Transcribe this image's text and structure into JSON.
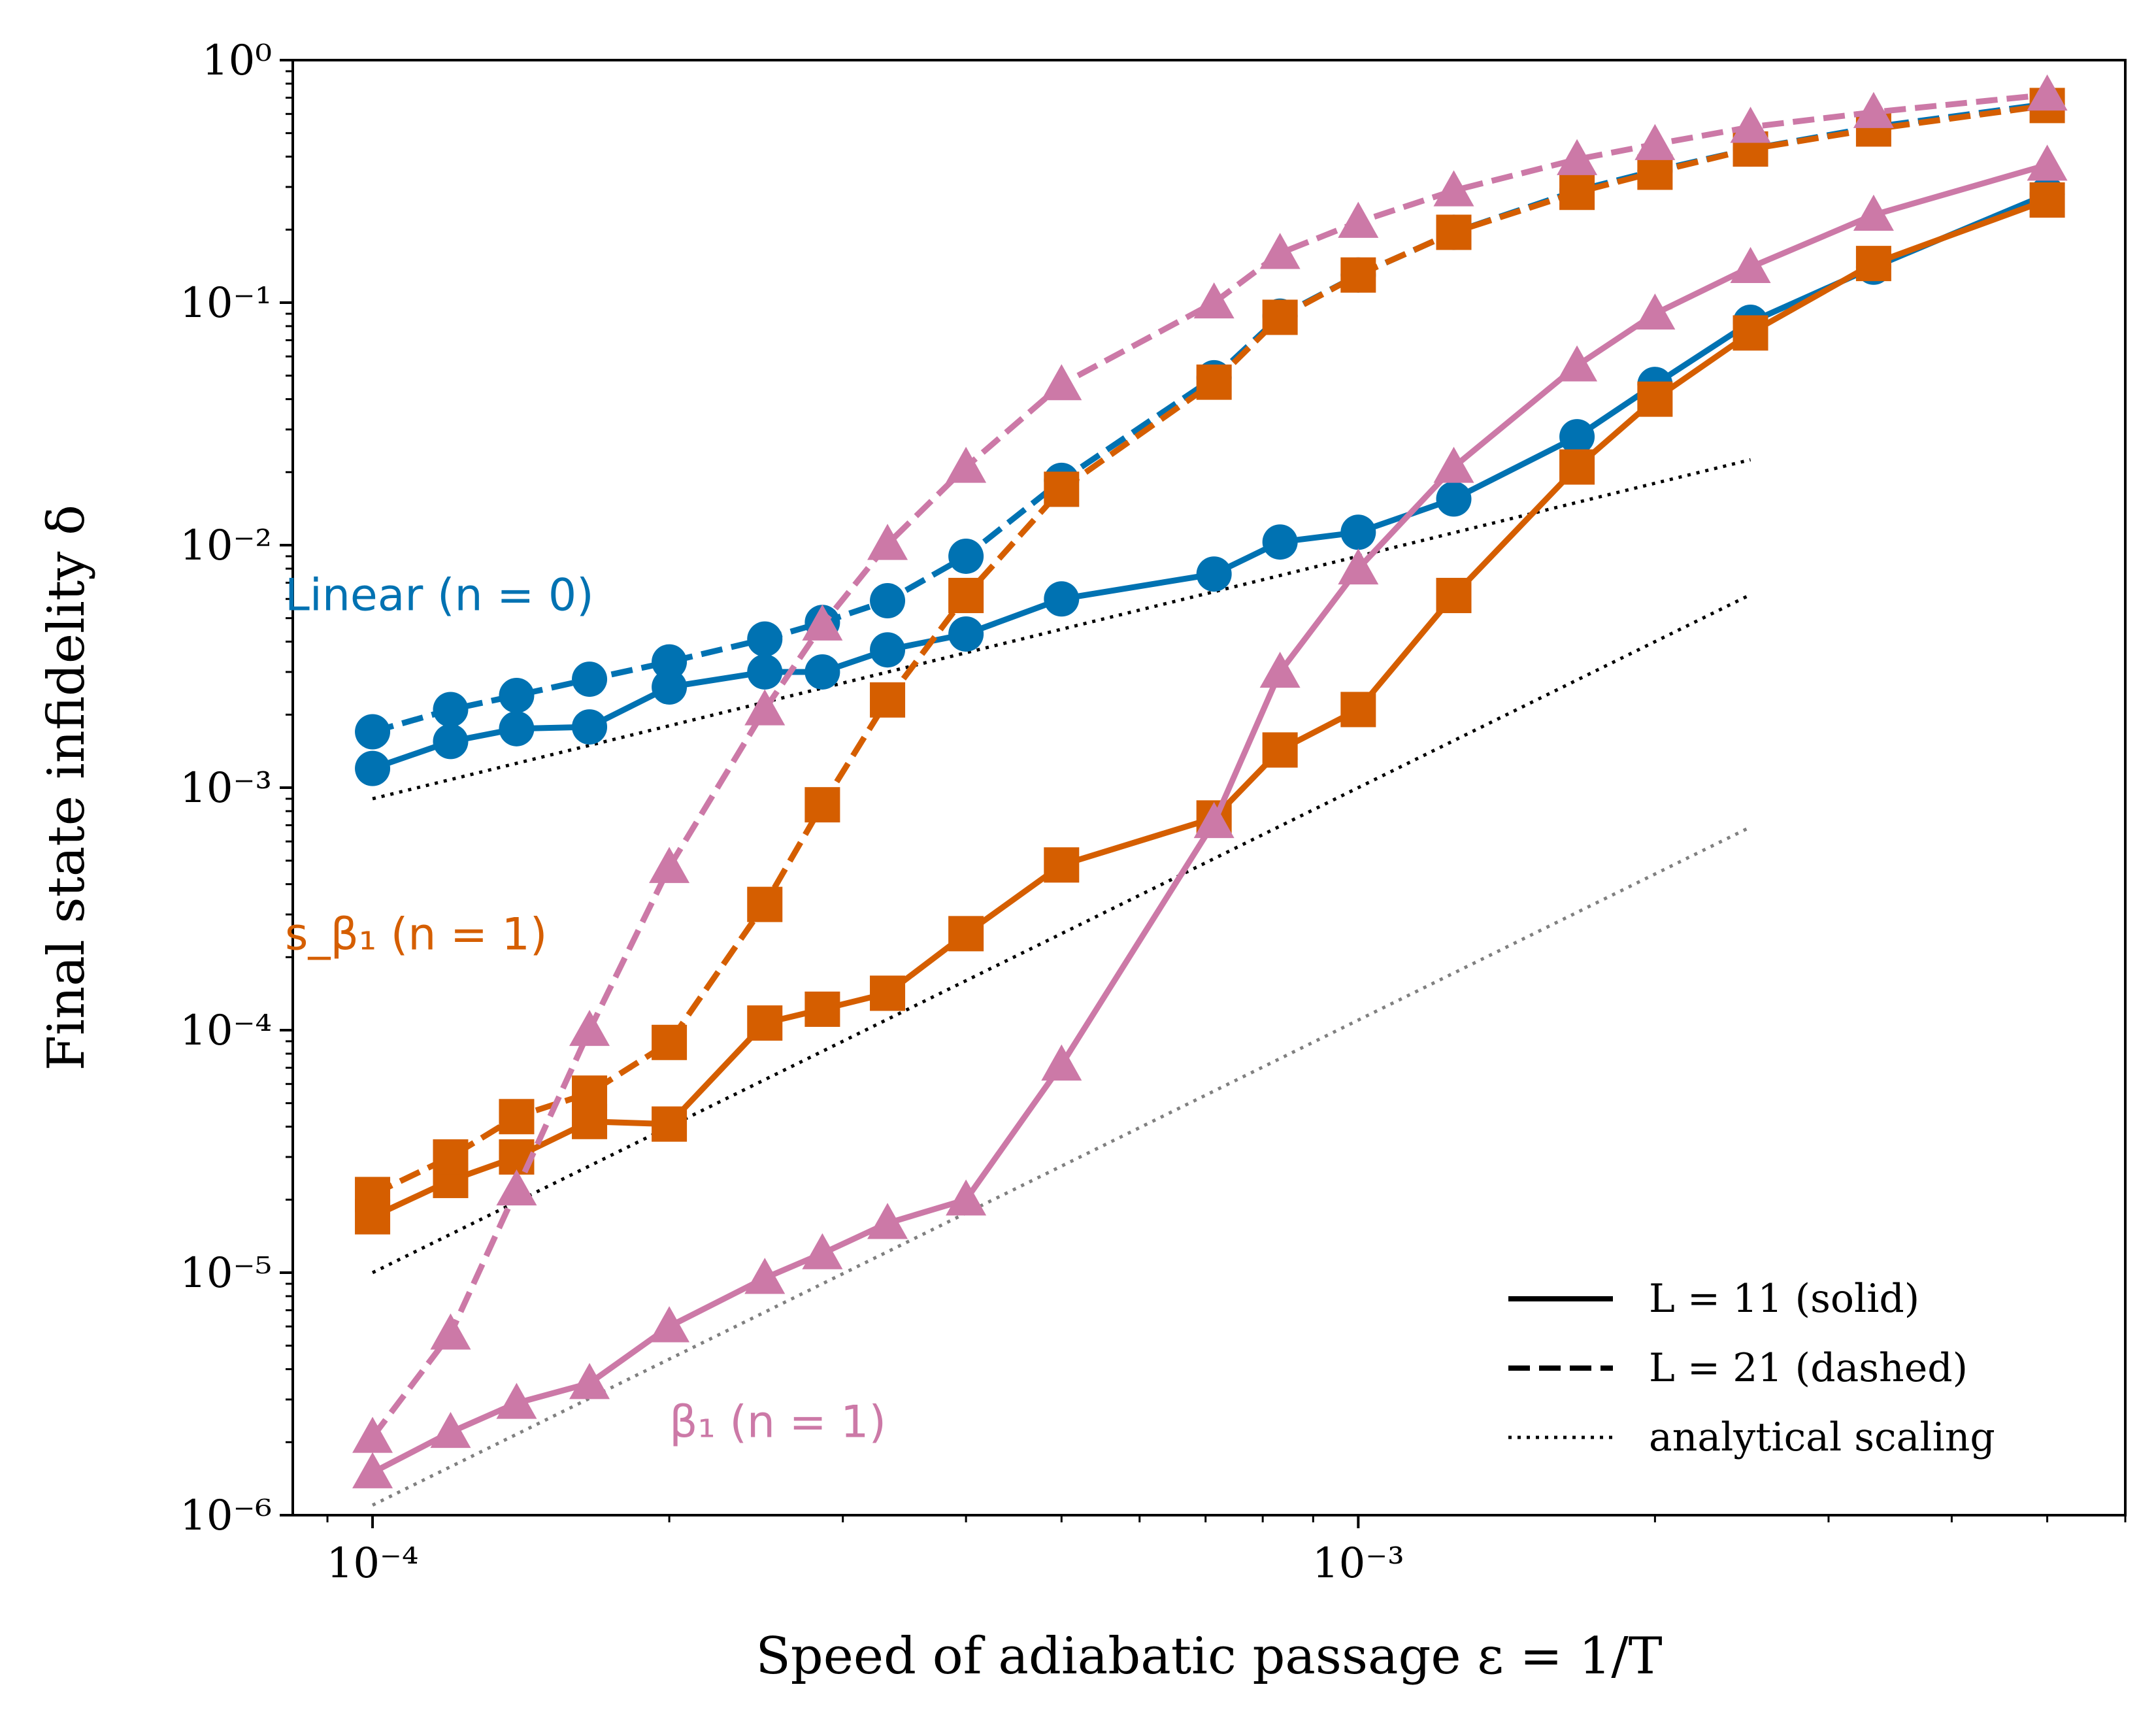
{
  "chart_data": {
    "type": "line",
    "xscale": "log",
    "yscale": "log",
    "xlabel": "Speed of adiabatic passage ε = 1/T",
    "ylabel": "Final state infidelity δ",
    "xlim": [
      8.3e-05,
      0.006
    ],
    "ylim": [
      1e-06,
      1
    ],
    "x_ticks": [
      {
        "value": 0.0001,
        "label": "10⁻⁴"
      },
      {
        "value": 0.001,
        "label": "10⁻³"
      }
    ],
    "y_ticks": [
      {
        "value": 1e-06,
        "label": "10⁻⁶"
      },
      {
        "value": 1e-05,
        "label": "10⁻⁵"
      },
      {
        "value": 0.0001,
        "label": "10⁻⁴"
      },
      {
        "value": 0.001,
        "label": "10⁻³"
      },
      {
        "value": 0.01,
        "label": "10⁻²"
      },
      {
        "value": 0.1,
        "label": "10⁻¹"
      },
      {
        "value": 1,
        "label": "10⁰"
      }
    ],
    "colors": {
      "linear": "#0072b2",
      "s_beta1": "#d55e00",
      "beta1": "#cc79a7",
      "analytical": "#000000",
      "analytical_gray": "#808080"
    },
    "series": [
      {
        "name": "Linear (n = 0), L = 11",
        "style": "solid",
        "marker": "circle",
        "color_key": "linear",
        "x": [
          0.0001,
          0.00012,
          0.00014,
          0.000166,
          0.0002,
          0.00025,
          0.000286,
          0.000333,
          0.0004,
          0.0005,
          0.000714,
          0.000833,
          0.001,
          0.00125,
          0.001667,
          0.002,
          0.0025,
          0.003333,
          0.005
        ],
        "y": [
          0.0012,
          0.00155,
          0.00175,
          0.00178,
          0.0026,
          0.003,
          0.003,
          0.0037,
          0.0043,
          0.006,
          0.0076,
          0.0103,
          0.0113,
          0.0155,
          0.028,
          0.046,
          0.083,
          0.14,
          0.28
        ]
      },
      {
        "name": "Linear (n = 0), L = 21",
        "style": "dashed",
        "marker": "circle",
        "color_key": "linear",
        "x": [
          0.0001,
          0.00012,
          0.00014,
          0.000166,
          0.0002,
          0.00025,
          0.000286,
          0.000333,
          0.0004,
          0.0005,
          0.000714,
          0.000833,
          0.001,
          0.00125,
          0.001667,
          0.002,
          0.0025,
          0.003333,
          0.005
        ],
        "y": [
          0.0017,
          0.0021,
          0.0024,
          0.0028,
          0.0033,
          0.0041,
          0.0048,
          0.0059,
          0.009,
          0.0185,
          0.049,
          0.088,
          0.13,
          0.195,
          0.29,
          0.35,
          0.43,
          0.53,
          0.66
        ]
      },
      {
        "name": "s_β₁ (n = 1), L = 11",
        "style": "solid",
        "marker": "square",
        "color_key": "s_beta1",
        "x": [
          0.0001,
          0.00012,
          0.00014,
          0.000166,
          0.0002,
          0.00025,
          0.000286,
          0.000333,
          0.0004,
          0.0005,
          0.000714,
          0.000833,
          0.001,
          0.00125,
          0.001667,
          0.002,
          0.0025,
          0.003333,
          0.005
        ],
        "y": [
          1.7e-05,
          2.4e-05,
          3e-05,
          4.2e-05,
          4.1e-05,
          0.000107,
          0.000122,
          0.000142,
          0.00025,
          0.00048,
          0.00075,
          0.00143,
          0.0021,
          0.0062,
          0.021,
          0.04,
          0.075,
          0.145,
          0.265
        ]
      },
      {
        "name": "s_β₁ (n = 1), L = 21",
        "style": "dashed",
        "marker": "square",
        "color_key": "s_beta1",
        "x": [
          0.0001,
          0.00012,
          0.00014,
          0.000166,
          0.0002,
          0.00025,
          0.000286,
          0.000333,
          0.0004,
          0.0005,
          0.000714,
          0.000833,
          0.001,
          0.00125,
          0.001667,
          0.002,
          0.0025,
          0.003333,
          0.005
        ],
        "y": [
          2.1e-05,
          3e-05,
          4.4e-05,
          5.5e-05,
          8.9e-05,
          0.00033,
          0.00085,
          0.0023,
          0.0062,
          0.017,
          0.047,
          0.087,
          0.13,
          0.195,
          0.285,
          0.345,
          0.43,
          0.52,
          0.65
        ]
      },
      {
        "name": "β₁ (n = 1), L = 11",
        "style": "solid",
        "marker": "triangle",
        "color_key": "beta1",
        "x": [
          0.0001,
          0.00012,
          0.00014,
          0.000166,
          0.0002,
          0.00025,
          0.000286,
          0.000333,
          0.0004,
          0.0005,
          0.000714,
          0.000833,
          0.001,
          0.00125,
          0.001667,
          0.002,
          0.0025,
          0.003333,
          0.005
        ],
        "y": [
          1.5e-06,
          2.2e-06,
          2.9e-06,
          3.5e-06,
          6e-06,
          9.5e-06,
          1.2e-05,
          1.6e-05,
          2e-05,
          7.2e-05,
          0.00072,
          0.003,
          0.008,
          0.021,
          0.055,
          0.09,
          0.14,
          0.23,
          0.37
        ]
      },
      {
        "name": "β₁ (n = 1), L = 21",
        "style": "dashed",
        "marker": "triangle",
        "color_key": "beta1",
        "x": [
          0.0001,
          0.00012,
          0.00014,
          0.000166,
          0.0002,
          0.00025,
          0.000286,
          0.000333,
          0.0004,
          0.0005,
          0.000714,
          0.000833,
          0.001,
          0.00125,
          0.001667,
          0.002,
          0.0025,
          0.003333,
          0.005
        ],
        "y": [
          2.1e-06,
          5.6e-06,
          2.2e-05,
          0.0001,
          0.00047,
          0.0021,
          0.0047,
          0.0101,
          0.021,
          0.046,
          0.1,
          0.16,
          0.215,
          0.29,
          0.39,
          0.45,
          0.53,
          0.61,
          0.72
        ]
      }
    ],
    "analytical_lines": [
      {
        "name": "analytical scaling (n = 0)",
        "color_key": "analytical",
        "x": [
          0.0001,
          0.0025
        ],
        "y": [
          0.0009,
          0.0225
        ]
      },
      {
        "name": "analytical scaling (n = 1)",
        "color_key": "analytical",
        "x": [
          0.0001,
          0.0025
        ],
        "y": [
          1e-05,
          0.00625
        ]
      },
      {
        "name": "analytical scaling (β₁)",
        "color_key": "analytical_gray",
        "x": [
          0.0001,
          0.0025
        ],
        "y": [
          1.1e-06,
          0.000688
        ]
      }
    ],
    "annotations": [
      {
        "text": "Linear (n = 0)",
        "color_key": "linear",
        "x": 8.15e-05,
        "y": 0.0054
      },
      {
        "text": "s_β₁ (n = 1)",
        "color_key": "s_beta1",
        "x": 8.15e-05,
        "y": 0.000215
      },
      {
        "text": "β₁ (n = 1)",
        "color_key": "beta1",
        "x": 0.0002,
        "y": 2.1e-06
      }
    ],
    "legend": {
      "position": "bottom-right",
      "entries": [
        {
          "label": "L = 11 (solid)",
          "style": "solid"
        },
        {
          "label": "L = 21 (dashed)",
          "style": "dashed"
        },
        {
          "label": "analytical scaling",
          "style": "dotted"
        }
      ]
    }
  }
}
